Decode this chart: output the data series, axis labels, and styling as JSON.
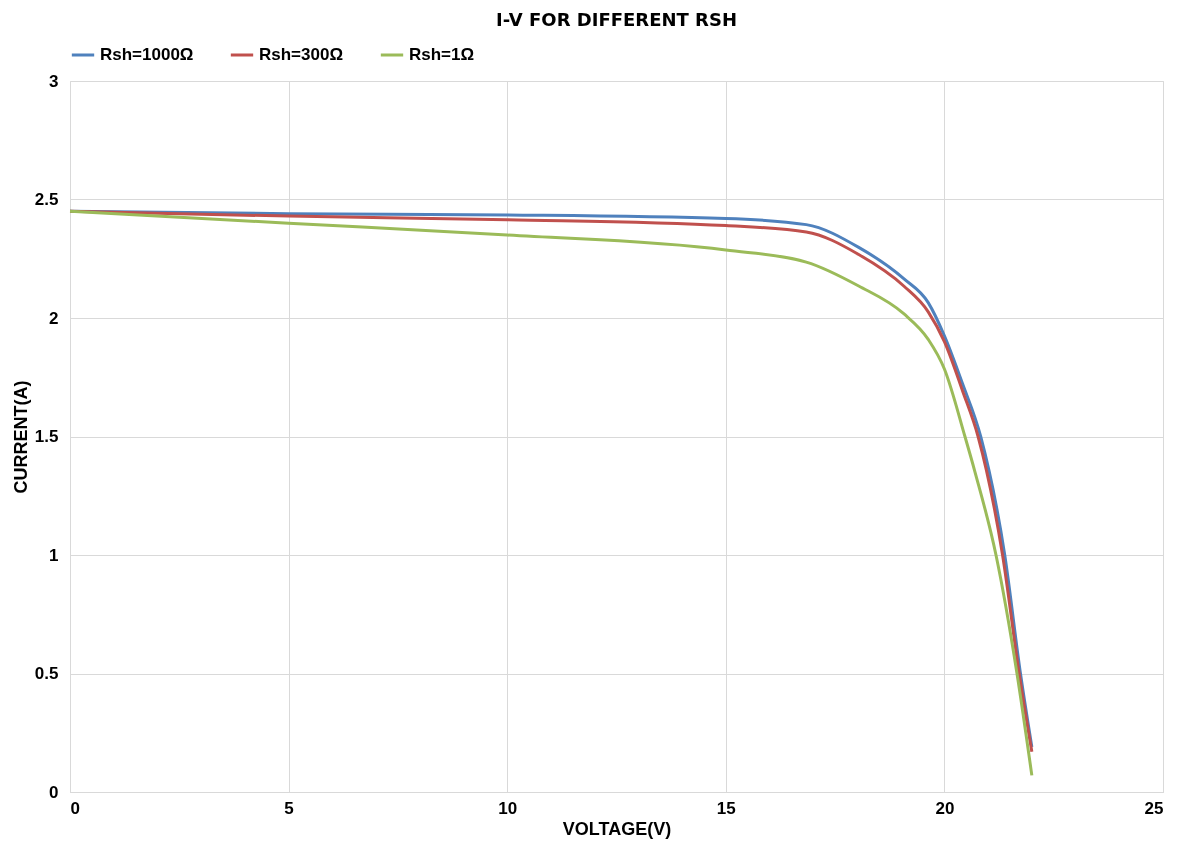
{
  "chart_data": {
    "type": "line",
    "title": "I-V FOR DIFFERENT RSH",
    "xlabel": "VOLTAGE(V)",
    "ylabel": "CURRENT(A)",
    "xlim": [
      0,
      25
    ],
    "xticks": [
      0,
      5,
      10,
      15,
      20,
      25
    ],
    "ylim": [
      0,
      3
    ],
    "yticks": [
      0,
      0.5,
      1,
      1.5,
      2,
      2.5,
      3
    ],
    "grid": true,
    "legend": "top",
    "marker": "none",
    "line_style": "solid",
    "series": [
      {
        "name": "Rsh=1000Ω",
        "color": "#4f81bd",
        "x": [
          0,
          5,
          10,
          15,
          16.84,
          18.04,
          19.07,
          19.63,
          20,
          20.42,
          20.83,
          21.38,
          21.74,
          22
        ],
        "values": [
          2.45,
          2.44,
          2.435,
          2.42,
          2.394,
          2.298,
          2.166,
          2.065,
          1.925,
          1.72,
          1.5,
          1.0,
          0.5,
          0.19
        ]
      },
      {
        "name": "Rsh=300Ω",
        "color": "#c0504d",
        "x": [
          0,
          5,
          10,
          15,
          16.84,
          18.04,
          19.07,
          19.63,
          20,
          20.42,
          20.77,
          21.33,
          21.71,
          22
        ],
        "values": [
          2.45,
          2.43,
          2.415,
          2.39,
          2.363,
          2.268,
          2.135,
          2.026,
          1.9,
          1.69,
          1.5,
          1.0,
          0.5,
          0.17
        ]
      },
      {
        "name": "Rsh=1Ω",
        "color": "#9bbb59",
        "x": [
          0,
          5,
          10,
          15,
          16.84,
          18.04,
          19.07,
          19.63,
          20,
          20.47,
          20.7,
          21.18,
          21.66,
          22
        ],
        "values": [
          2.45,
          2.4,
          2.35,
          2.287,
          2.236,
          2.135,
          2.018,
          1.91,
          1.785,
          1.5,
          1.35,
          1.0,
          0.5,
          0.07
        ]
      }
    ]
  }
}
